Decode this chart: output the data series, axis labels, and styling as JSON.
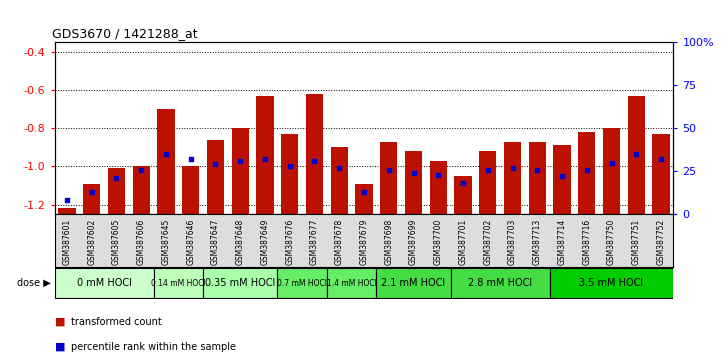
{
  "title": "GDS3670 / 1421288_at",
  "samples": [
    "GSM387601",
    "GSM387602",
    "GSM387605",
    "GSM387606",
    "GSM387645",
    "GSM387646",
    "GSM387647",
    "GSM387648",
    "GSM387649",
    "GSM387676",
    "GSM387677",
    "GSM387678",
    "GSM387679",
    "GSM387698",
    "GSM387699",
    "GSM387700",
    "GSM387701",
    "GSM387702",
    "GSM387703",
    "GSM387713",
    "GSM387714",
    "GSM387716",
    "GSM387750",
    "GSM387751",
    "GSM387752"
  ],
  "bar_values": [
    -1.22,
    -1.09,
    -1.01,
    -1.0,
    -0.7,
    -1.0,
    -0.86,
    -0.8,
    -0.63,
    -0.83,
    -0.62,
    -0.9,
    -1.09,
    -0.87,
    -0.92,
    -0.97,
    -1.05,
    -0.92,
    -0.87,
    -0.87,
    -0.89,
    -0.82,
    -0.8,
    -0.63,
    -0.83
  ],
  "percentile_values": [
    0.08,
    0.13,
    0.21,
    0.26,
    0.35,
    0.32,
    0.29,
    0.31,
    0.32,
    0.28,
    0.31,
    0.27,
    0.13,
    0.26,
    0.24,
    0.23,
    0.18,
    0.26,
    0.27,
    0.26,
    0.22,
    0.26,
    0.3,
    0.35,
    0.32
  ],
  "doses": [
    {
      "label": "0 mM HOCl",
      "start": 0,
      "end": 4,
      "color": "#ccffcc"
    },
    {
      "label": "0.14 mM HOCl",
      "start": 4,
      "end": 6,
      "color": "#bbffbb"
    },
    {
      "label": "0.35 mM HOCl",
      "start": 6,
      "end": 9,
      "color": "#aaffaa"
    },
    {
      "label": "0.7 mM HOCl",
      "start": 9,
      "end": 11,
      "color": "#66ee66"
    },
    {
      "label": "1.4 mM HOCl",
      "start": 11,
      "end": 13,
      "color": "#66ee66"
    },
    {
      "label": "2.1 mM HOCl",
      "start": 13,
      "end": 16,
      "color": "#44dd44"
    },
    {
      "label": "2.8 mM HOCl",
      "start": 16,
      "end": 20,
      "color": "#44dd44"
    },
    {
      "label": "3.5 mM HOCl",
      "start": 20,
      "end": 25,
      "color": "#00cc00"
    }
  ],
  "bar_color": "#bb1100",
  "percentile_color": "#0000cc",
  "ylim": [
    -1.25,
    -0.35
  ],
  "yticks_left": [
    -1.2,
    -1.0,
    -0.8,
    -0.6,
    -0.4
  ],
  "yticks_right": [
    0,
    25,
    50,
    75,
    100
  ],
  "ytick_right_labels": [
    "0",
    "25",
    "50",
    "75",
    "100%"
  ],
  "bar_width": 0.7,
  "label_bg_color": "#dddddd"
}
